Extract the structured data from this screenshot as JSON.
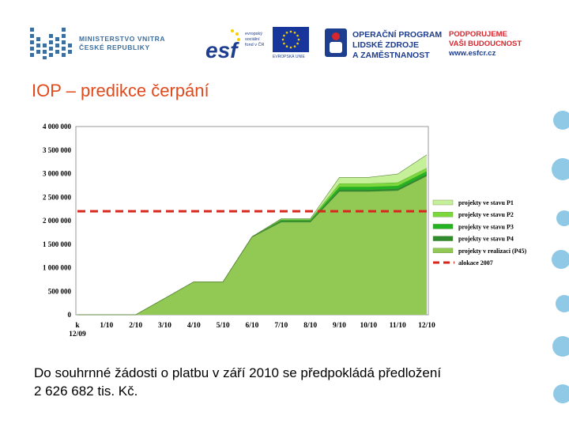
{
  "header": {
    "ministry_line1": "MINISTERSTVO VNITRA",
    "ministry_line2": "ČESKÉ REPUBLIKY",
    "esf_mark": "esf",
    "esf_line1": "evropský",
    "esf_line2": "sociální",
    "esf_line3": "fond v ČR",
    "eu_caption": "EVROPSKÁ UNIE",
    "op_line1": "OPERAČNÍ PROGRAM",
    "op_line2": "LIDSKÉ ZDROJE",
    "op_line3": "A ZAMĚSTNANOST",
    "pb_line1": "PODPORUJEME",
    "pb_line2": "VAŠI BUDOUCNOST",
    "pb_url": "www.esfcr.cz"
  },
  "title": "IOP – predikce čerpání",
  "footer": {
    "line1": "Do souhrnné žádosti o platbu v září 2010 se předpokládá předložení",
    "line2": "2 626 682 tis. Kč."
  },
  "colors": {
    "title": "#e04a1c",
    "ministry_blue": "#3d6f9e",
    "op_blue": "#1d3d8f",
    "pb_red": "#d7262e",
    "deco_blue": "#8fc9e6"
  },
  "chart_data": {
    "type": "area",
    "x": [
      "k 12/09",
      "1/10",
      "2/10",
      "3/10",
      "4/10",
      "5/10",
      "6/10",
      "7/10",
      "8/10",
      "9/10",
      "10/10",
      "11/10",
      "12/10"
    ],
    "x_tick_labels": [
      [
        "k",
        "12/09"
      ],
      [
        "1/10"
      ],
      [
        "2/10"
      ],
      [
        "3/10"
      ],
      [
        "4/10"
      ],
      [
        "5/10"
      ],
      [
        "6/10"
      ],
      [
        "7/10"
      ],
      [
        "8/10"
      ],
      [
        "9/10"
      ],
      [
        "10/10"
      ],
      [
        "11/10"
      ],
      [
        "12/10"
      ]
    ],
    "ylim": [
      0,
      4000000
    ],
    "y_ticks": [
      0,
      500000,
      1000000,
      1500000,
      2000000,
      2500000,
      3000000,
      3500000,
      4000000
    ],
    "y_tick_labels": [
      "0",
      "500 000",
      "1 000 000",
      "1 500 000",
      "2 000 000",
      "2 500 000",
      "3 000 000",
      "3 500 000",
      "4 000 000"
    ],
    "stacked": true,
    "grid": false,
    "legend_position": "right",
    "series": [
      {
        "name": "projekty v realizaci (P45)",
        "color": "#92c955",
        "values": [
          0,
          0,
          0,
          350000,
          700000,
          700000,
          1650000,
          1970000,
          1970000,
          2620000,
          2620000,
          2640000,
          2950000
        ]
      },
      {
        "name": "projekty ve stavu P4",
        "color": "#2e8b2e",
        "values": [
          0,
          0,
          0,
          0,
          0,
          0,
          10000,
          25000,
          25000,
          40000,
          40000,
          40000,
          40000
        ]
      },
      {
        "name": "projekty ve stavu P3",
        "color": "#22b322",
        "values": [
          0,
          0,
          0,
          0,
          0,
          0,
          0,
          20000,
          20000,
          60000,
          60000,
          60000,
          60000
        ]
      },
      {
        "name": "projekty ve stavu P2",
        "color": "#7ad83a",
        "values": [
          0,
          0,
          0,
          0,
          0,
          0,
          0,
          15000,
          15000,
          70000,
          70000,
          70000,
          70000
        ]
      },
      {
        "name": "projekty ve stavu P1",
        "color": "#c6ef9a",
        "values": [
          0,
          0,
          0,
          0,
          0,
          0,
          0,
          10000,
          10000,
          130000,
          130000,
          180000,
          280000
        ]
      }
    ],
    "reference_line": {
      "name": "alokace 2007",
      "value": 2200000,
      "color": "#d9261c",
      "style": "dashed"
    }
  }
}
